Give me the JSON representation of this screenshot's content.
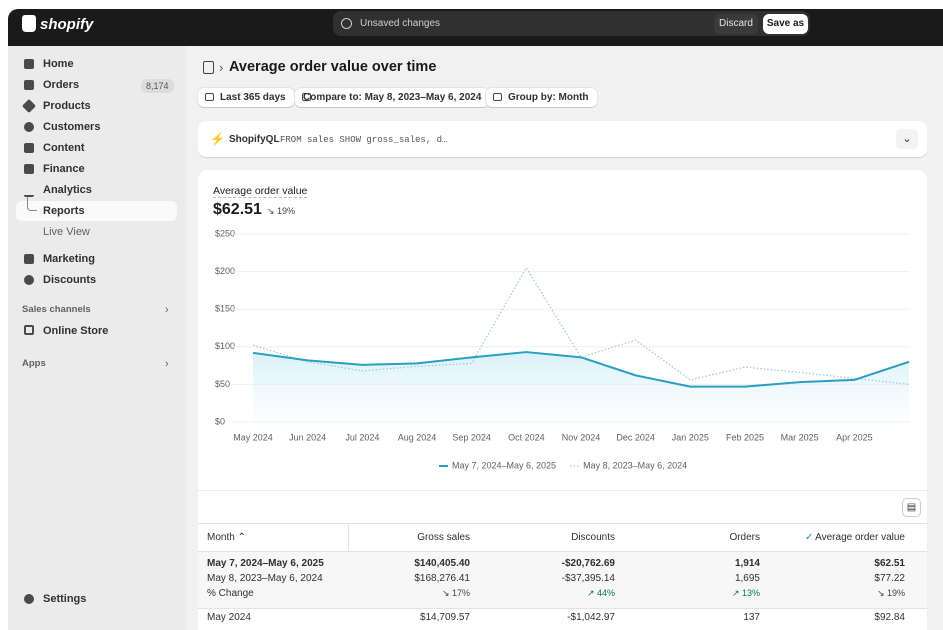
{
  "topbar": {
    "logo": "shopify",
    "status": "Unsaved changes",
    "discard": "Discard",
    "save": "Save as"
  },
  "sidebar": {
    "items": [
      "Home",
      "Orders",
      "Products",
      "Customers",
      "Content",
      "Finance",
      "Analytics",
      "Reports",
      "Live View",
      "Marketing",
      "Discounts"
    ],
    "orders_badge": "8,174",
    "sales_channels": "Sales channels",
    "online_store": "Online Store",
    "apps": "Apps",
    "settings": "Settings"
  },
  "header": {
    "title": "Average order value over time"
  },
  "toolbar": {
    "range": "Last 365 days",
    "compare": "Compare to: May 8, 2023–May 6, 2024",
    "group": "Group by: Month"
  },
  "query": {
    "label": "ShopifyQL",
    "code": "FROM sales SHOW gross_sales, d…"
  },
  "chart_data": {
    "type": "line",
    "title": "Average order value",
    "headline": "$62.51",
    "change": "↘ 19%",
    "categories": [
      "May 2024",
      "Jun 2024",
      "Jul 2024",
      "Aug 2024",
      "Sep 2024",
      "Oct 2024",
      "Nov 2024",
      "Dec 2024",
      "Jan 2025",
      "Feb 2025",
      "Mar 2025",
      "Apr 2025",
      null
    ],
    "series": [
      {
        "name": "May 7, 2024–May 6, 2025",
        "color": "#2a9fc0",
        "style": "solid",
        "values": [
          92,
          82,
          76,
          78,
          86,
          93,
          86,
          62,
          47,
          47,
          53,
          56,
          80
        ]
      },
      {
        "name": "May 8, 2023–May 6, 2024",
        "color": "#9cc9d3",
        "style": "dotted",
        "values": [
          102,
          80,
          68,
          74,
          78,
          205,
          86,
          109,
          56,
          73,
          66,
          58,
          50
        ]
      }
    ],
    "ylim": [
      0,
      250
    ],
    "yticks": [
      {
        "value": 0,
        "label": "$0"
      },
      {
        "value": 50,
        "label": "$50"
      },
      {
        "value": 100,
        "label": "$100"
      },
      {
        "value": 150,
        "label": "$150"
      },
      {
        "value": 200,
        "label": "$200"
      },
      {
        "value": 250,
        "label": "$250"
      }
    ],
    "grid": true
  },
  "table": {
    "header": [
      "Month",
      "Gross sales",
      "Discounts",
      "Orders",
      "Average order value"
    ],
    "rows": [
      [
        "May 7, 2024–May 6, 2025",
        "$140,405.40",
        "-$20,762.69",
        "1,914",
        "$62.51"
      ],
      [
        "May 8, 2023–May 6, 2024",
        "$168,276.41",
        "-$37,395.14",
        "1,695",
        "$77.22"
      ],
      [
        "% Change",
        "↘ 17%",
        "↗ 44%",
        "↗ 13%",
        "↘ 19%"
      ],
      [
        "May 2024",
        "$14,709.57",
        "-$1,042.97",
        "137",
        "$92.84"
      ]
    ]
  }
}
